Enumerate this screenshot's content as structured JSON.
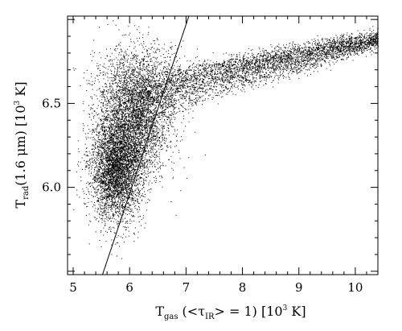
{
  "chart_data": {
    "type": "scatter",
    "title": "",
    "xlabel": {
      "main": "T",
      "sub": "gas",
      "paren": "(<τ",
      "paren_sub": "IR",
      "rest": "> = 1) [10",
      "sup": "3",
      "unit": " K]"
    },
    "ylabel": {
      "main": "T",
      "sub": "rad",
      "paren": "(1.6 μm) [10",
      "sup": "3",
      "unit": " K]"
    },
    "xlim": [
      4.9,
      10.4
    ],
    "ylim": [
      5.48,
      7.02
    ],
    "x_ticks": [
      5,
      6,
      7,
      8,
      9,
      10
    ],
    "x_tick_labels": [
      "5",
      "6",
      "7",
      "8",
      "9",
      "10"
    ],
    "y_ticks": [
      6.0,
      6.5
    ],
    "y_tick_labels": [
      "6.0",
      "6.5"
    ],
    "grid": false,
    "scale": "linear",
    "point_color": "#000000",
    "approx_point_count": 12000,
    "series": [
      {
        "type": "scatter-density",
        "regions": [
          {
            "x_mean": 5.75,
            "y_mean": 6.1,
            "x_sd": 0.22,
            "y_sd": 0.15,
            "fraction": 0.3
          },
          {
            "x_mean": 6.05,
            "y_mean": 6.35,
            "x_sd": 0.3,
            "y_sd": 0.17,
            "fraction": 0.22
          },
          {
            "x_mean": 6.2,
            "y_mean": 6.6,
            "x_sd": 0.4,
            "y_sd": 0.13,
            "fraction": 0.13
          }
        ],
        "upper_branch": [
          [
            6.0,
            6.55
          ],
          [
            6.5,
            6.63
          ],
          [
            7.0,
            6.7
          ],
          [
            7.5,
            6.74
          ],
          [
            8.0,
            6.77
          ],
          [
            8.5,
            6.8
          ],
          [
            9.0,
            6.83
          ],
          [
            9.5,
            6.86
          ],
          [
            10.0,
            6.88
          ],
          [
            10.4,
            6.9
          ]
        ],
        "lower_branch": [
          [
            6.0,
            6.25
          ],
          [
            6.5,
            6.35
          ],
          [
            7.0,
            6.45
          ],
          [
            7.5,
            6.52
          ],
          [
            8.0,
            6.58
          ],
          [
            8.5,
            6.63
          ],
          [
            9.0,
            6.68
          ],
          [
            9.5,
            6.74
          ],
          [
            10.0,
            6.8
          ],
          [
            10.4,
            6.86
          ]
        ]
      },
      {
        "type": "line",
        "x": [
          5.52,
          7.05
        ],
        "y": [
          5.48,
          7.02
        ]
      }
    ]
  }
}
